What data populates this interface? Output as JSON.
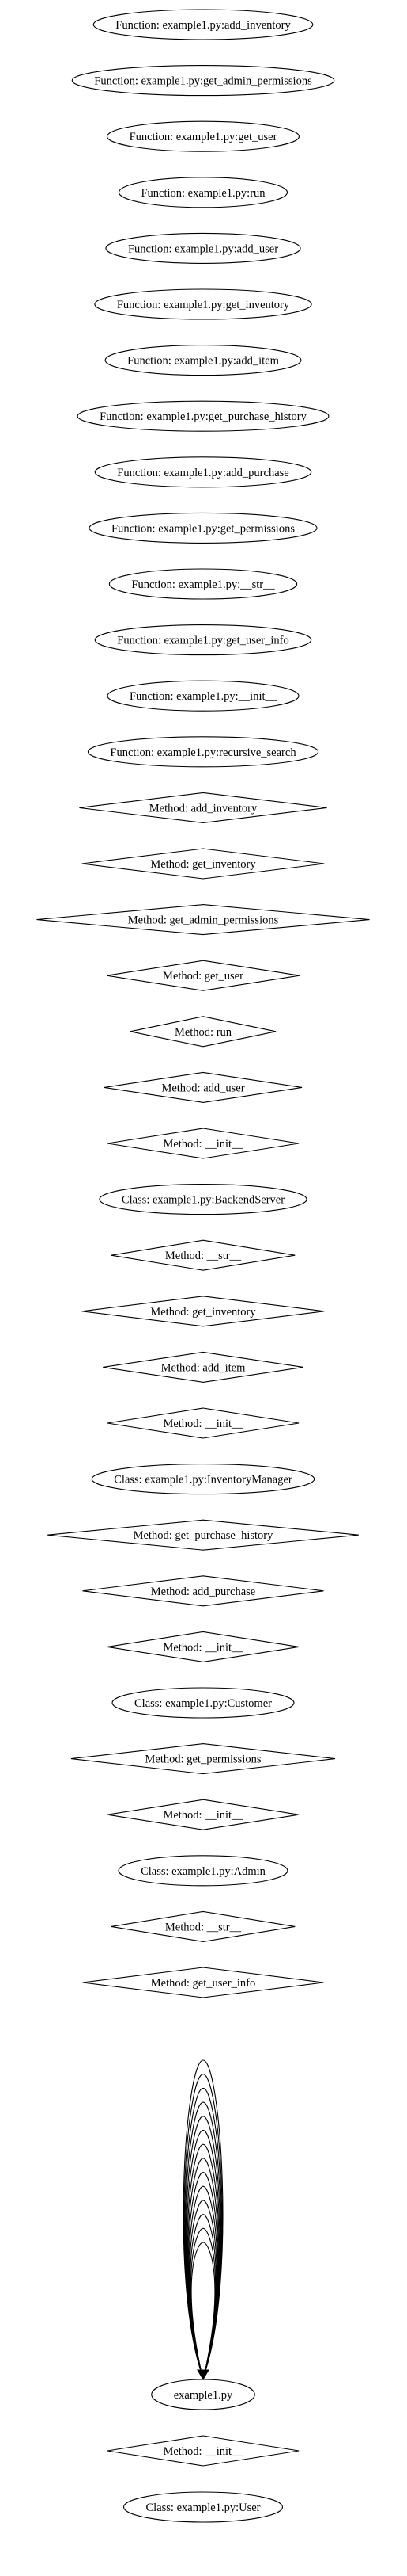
{
  "graph": {
    "nodes": [
      {
        "id": "n0",
        "shape": "ellipse",
        "label": "Function: example1.py:add_inventory"
      },
      {
        "id": "n1",
        "shape": "ellipse",
        "label": "Function: example1.py:get_admin_permissions"
      },
      {
        "id": "n2",
        "shape": "ellipse",
        "label": "Function: example1.py:get_user"
      },
      {
        "id": "n3",
        "shape": "ellipse",
        "label": "Function: example1.py:run"
      },
      {
        "id": "n4",
        "shape": "ellipse",
        "label": "Function: example1.py:add_user"
      },
      {
        "id": "n5",
        "shape": "ellipse",
        "label": "Function: example1.py:get_inventory"
      },
      {
        "id": "n6",
        "shape": "ellipse",
        "label": "Function: example1.py:add_item"
      },
      {
        "id": "n7",
        "shape": "ellipse",
        "label": "Function: example1.py:get_purchase_history"
      },
      {
        "id": "n8",
        "shape": "ellipse",
        "label": "Function: example1.py:add_purchase"
      },
      {
        "id": "n9",
        "shape": "ellipse",
        "label": "Function: example1.py:get_permissions"
      },
      {
        "id": "n10",
        "shape": "ellipse",
        "label": "Function: example1.py:__str__"
      },
      {
        "id": "n11",
        "shape": "ellipse",
        "label": "Function: example1.py:get_user_info"
      },
      {
        "id": "n12",
        "shape": "ellipse",
        "label": "Function: example1.py:__init__"
      },
      {
        "id": "n13",
        "shape": "ellipse",
        "label": "Function: example1.py:recursive_search"
      },
      {
        "id": "n14",
        "shape": "diamond",
        "label": "Method: add_inventory"
      },
      {
        "id": "n15",
        "shape": "diamond",
        "label": "Method: get_inventory"
      },
      {
        "id": "n16",
        "shape": "diamond",
        "label": "Method: get_admin_permissions"
      },
      {
        "id": "n17",
        "shape": "diamond",
        "label": "Method: get_user"
      },
      {
        "id": "n18",
        "shape": "diamond",
        "label": "Method: run"
      },
      {
        "id": "n19",
        "shape": "diamond",
        "label": "Method: add_user"
      },
      {
        "id": "n20",
        "shape": "diamond",
        "label": "Method: __init__"
      },
      {
        "id": "n21",
        "shape": "ellipse",
        "label": "Class: example1.py:BackendServer"
      },
      {
        "id": "n22",
        "shape": "diamond",
        "label": "Method: __str__"
      },
      {
        "id": "n23",
        "shape": "diamond",
        "label": "Method: get_inventory"
      },
      {
        "id": "n24",
        "shape": "diamond",
        "label": "Method: add_item"
      },
      {
        "id": "n25",
        "shape": "diamond",
        "label": "Method: __init__"
      },
      {
        "id": "n26",
        "shape": "ellipse",
        "label": "Class: example1.py:InventoryManager"
      },
      {
        "id": "n27",
        "shape": "diamond",
        "label": "Method: get_purchase_history"
      },
      {
        "id": "n28",
        "shape": "diamond",
        "label": "Method: add_purchase"
      },
      {
        "id": "n29",
        "shape": "diamond",
        "label": "Method: __init__"
      },
      {
        "id": "n30",
        "shape": "ellipse",
        "label": "Class: example1.py:Customer"
      },
      {
        "id": "n31",
        "shape": "diamond",
        "label": "Method: get_permissions"
      },
      {
        "id": "n32",
        "shape": "diamond",
        "label": "Method: __init__"
      },
      {
        "id": "n33",
        "shape": "ellipse",
        "label": "Class: example1.py:Admin"
      },
      {
        "id": "n34",
        "shape": "diamond",
        "label": "Method: __str__"
      },
      {
        "id": "n35",
        "shape": "diamond",
        "label": "Method: get_user_info"
      },
      {
        "id": "n36",
        "shape": "ellipse",
        "label": "example1.py"
      },
      {
        "id": "n37",
        "shape": "diamond",
        "label": "Method: __init__"
      },
      {
        "id": "n38",
        "shape": "ellipse",
        "label": "Class: example1.py:User"
      }
    ],
    "self_loop": {
      "node": "n36",
      "count": 14
    }
  }
}
